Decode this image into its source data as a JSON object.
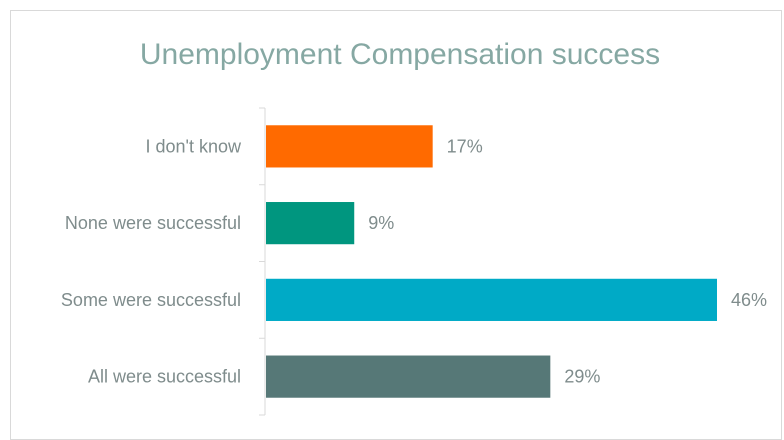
{
  "chart_data": {
    "type": "bar",
    "orientation": "horizontal",
    "title": "Unemployment Compensation success",
    "categories": [
      "I don't know",
      "None were successful",
      "Some were successful",
      "All were successful"
    ],
    "values": [
      17,
      9,
      46,
      29
    ],
    "value_labels": [
      "17%",
      "9%",
      "46%",
      "29%"
    ],
    "colors": [
      "#ff6a00",
      "#00967f",
      "#00aac6",
      "#567877"
    ],
    "xlim": [
      0,
      46
    ],
    "grid": false,
    "legend": "none"
  }
}
